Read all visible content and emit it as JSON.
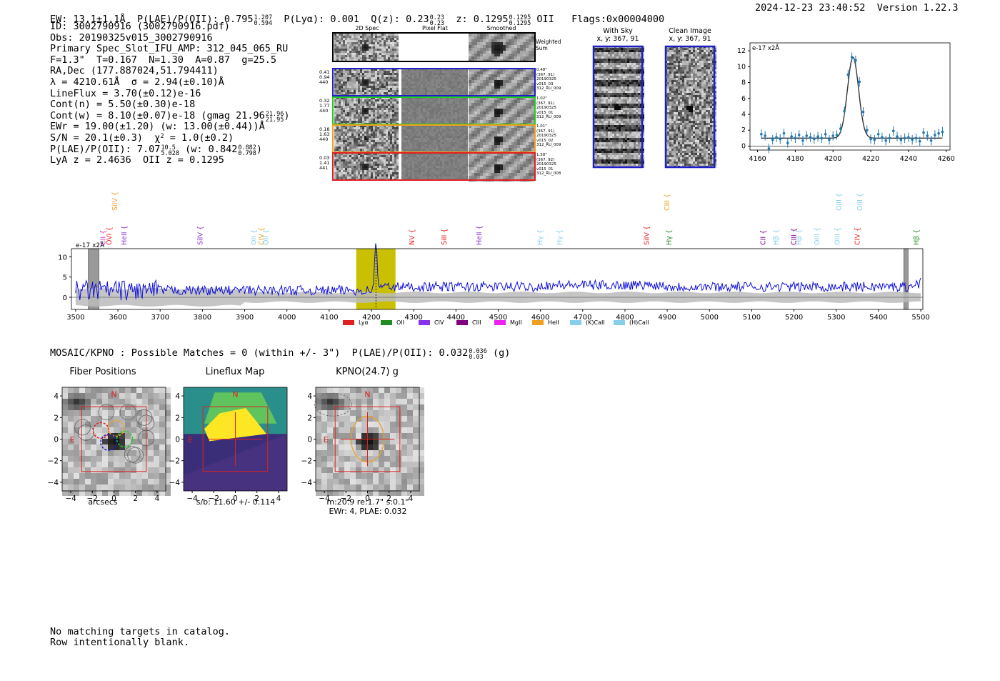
{
  "header": {
    "ew": "EW: 13.1±1.1Å",
    "plae_label": "P(LAE)/P(OII): 0.795",
    "plae_hi": "1.207",
    "plae_lo": "0.594",
    "plya": "P(Lyα): 0.001",
    "qz_label": "Q(z): 0.23",
    "qz_hi": "0.23",
    "qz_lo": "0.23",
    "z_label": "z: 0.1295",
    "z_hi": "0.1295",
    "z_lo": "0.1295",
    "z_line": "OII",
    "flags": "Flags:0x00004000",
    "timestamp": "2024-12-23 23:40:52",
    "version": "Version 1.22.3"
  },
  "info": {
    "id": "ID: 3002790916 (3002790916.pdf)",
    "obs": "Obs: 20190325v015_3002790916",
    "primary": "Primary Spec_Slot_IFU_AMP: 312_045_065_RU",
    "params": "F=1.3\"  T=0.167  N=1.30  A=0.87  g=25.5",
    "radec": "RA,Dec (177.887024,51.794411)",
    "lambda": "λ = 4210.61Å  σ = 2.94(±0.10)Å",
    "lineflux": "LineFlux = 3.70(±0.12)e-16",
    "contn": "Cont(n) = 5.50(±0.30)e-18",
    "contw": "Cont(w) = 8.10(±0.07)e-18 (gmag 21.96",
    "gmag_hi": "21.96",
    "gmag_lo": "21.95",
    "ewr": "EWr = 19.00(±1.20) (w: 13.00(±0.44))Å",
    "sn": "S/N = 20.1(±0.3)  χ",
    "chi2": "= 1.0(±0.2)",
    "plae": "P(LAE)/P(OII): 7.07",
    "plae_hi": "10.5",
    "plae_lo": "5.028",
    "plae_w": "(w: 0.842",
    "plae_w_hi": "0.882",
    "plae_w_lo": "0.798",
    "z": "LyA z = 2.4636  OII z = 0.1295"
  },
  "cutouts": {
    "col_titles": [
      "2D Spec",
      "Pixel Flat",
      "Smoothed"
    ],
    "weighted_sum": "Weighted\nSum",
    "rows": [
      {
        "left": "0.41\n0.94\n440",
        "right": "0.48\"\n(367, 91)\n20190325\nv015_03\n312_RU_009",
        "color": "#1f1fc8"
      },
      {
        "left": "0.32\n1.77\n440",
        "right": "1.02\"\n(367, 91)\n20190325\nv015_01\n312_RU_009",
        "color": "#22cc22"
      },
      {
        "left": "0.18\n1.63\n440",
        "right": "1.01\"\n(367, 91)\n20190325\nv015_02\n312_RU_009",
        "color": "#f0a020"
      },
      {
        "left": "0.03\n1.41\n441",
        "right": "1.58\"\n(367, 92)\n20190325\nv015_01\n312_RU_008",
        "color": "#e02020"
      }
    ],
    "with_sky_title": "With Sky\nx, y: 367, 91",
    "clean_title": "Clean Image\nx, y: 367, 91"
  },
  "chart_data": [
    {
      "type": "line",
      "title": "",
      "ylabel": "e-17 x2Å",
      "x_ticks": [
        4160,
        4180,
        4200,
        4220,
        4240,
        4260
      ],
      "y_ticks": [
        0,
        2,
        4,
        6,
        8,
        10,
        12
      ],
      "xlim": [
        4156,
        4262
      ],
      "ylim": [
        -0.5,
        13
      ],
      "series": [
        {
          "name": "data",
          "x": [
            4162,
            4164,
            4166,
            4168,
            4170,
            4172,
            4174,
            4176,
            4178,
            4180,
            4182,
            4184,
            4186,
            4188,
            4190,
            4192,
            4194,
            4196,
            4198,
            4200,
            4202,
            4204,
            4206,
            4208,
            4210,
            4212,
            4214,
            4216,
            4218,
            4220,
            4222,
            4224,
            4226,
            4228,
            4230,
            4232,
            4234,
            4236,
            4238,
            4240,
            4242,
            4244,
            4246,
            4248,
            4250,
            4252,
            4254,
            4256,
            4258
          ],
          "y": [
            1.5,
            1.3,
            -0.3,
            0.8,
            1.1,
            0.9,
            1.6,
            0.4,
            1.2,
            1.0,
            1.4,
            0.7,
            1.3,
            1.1,
            0.9,
            1.2,
            1.0,
            1.5,
            0.8,
            1.3,
            1.4,
            2.2,
            4.4,
            9.0,
            11.2,
            10.8,
            8.1,
            4.3,
            2.0,
            0.9,
            0.8,
            1.5,
            1.1,
            0.7,
            1.0,
            1.9,
            1.2,
            0.8,
            1.0,
            1.1,
            0.8,
            1.0,
            0.6,
            1.7,
            1.3,
            0.7,
            1.4,
            1.6,
            1.8
          ]
        },
        {
          "name": "fit",
          "model": "gaussian",
          "center": 4210.61,
          "sigma": 2.94,
          "amplitude": 10.2,
          "continuum": 1.0
        }
      ]
    },
    {
      "type": "line",
      "ylabel": "e-17 x2Å",
      "x_ticks": [
        3500,
        3600,
        3700,
        3800,
        3900,
        4000,
        4100,
        4200,
        4300,
        4400,
        4500,
        4600,
        4700,
        4800,
        4900,
        5000,
        5100,
        5200,
        5300,
        5400,
        5500
      ],
      "y_ticks": [
        0,
        5,
        10
      ],
      "xlim": [
        3490,
        5505
      ],
      "ylim": [
        -3,
        12
      ],
      "highlight": [
        4164,
        4257
      ],
      "masked": [
        [
          3530,
          3555
        ],
        [
          5460,
          5470
        ]
      ],
      "peak": {
        "center": 4210.6,
        "sigma": 2.94,
        "amplitude": 10.2
      },
      "lines": [
        {
          "name": "CII",
          "wave": 3565,
          "color": "#cc33cc",
          "tier": 0
        },
        {
          "name": "SiIV",
          "wave": 3593,
          "color": "#f0a020",
          "tier": 1
        },
        {
          "name": "OVI",
          "wave": 3580,
          "color": "#e02020",
          "tier": 0
        },
        {
          "name": "HeII",
          "wave": 3615,
          "color": "#8833cc",
          "tier": 0
        },
        {
          "name": "SiIV",
          "wave": 3795,
          "color": "#8833cc",
          "tier": 0
        },
        {
          "name": "OII",
          "wave": 3922,
          "color": "#87ceeb",
          "tier": 0
        },
        {
          "name": "CIV",
          "wave": 3940,
          "color": "#f0a020",
          "tier": 0
        },
        {
          "name": "OII",
          "wave": 3951,
          "color": "#87ceeb",
          "tier": 0
        },
        {
          "name": "NV",
          "wave": 4296,
          "color": "#e02020",
          "tier": 0
        },
        {
          "name": "SiII",
          "wave": 4372,
          "color": "#e02020",
          "tier": 0
        },
        {
          "name": "HeII",
          "wave": 4455,
          "color": "#8833cc",
          "tier": 0
        },
        {
          "name": "Hγ",
          "wave": 4600,
          "color": "#87ceeb",
          "tier": 0
        },
        {
          "name": "Hγ",
          "wave": 4645,
          "color": "#87ceeb",
          "tier": 0
        },
        {
          "name": "SiIV",
          "wave": 4852,
          "color": "#e02020",
          "tier": 0
        },
        {
          "name": "CIII",
          "wave": 4900,
          "color": "#f0a020",
          "tier": 1
        },
        {
          "name": "Hγ",
          "wave": 4904,
          "color": "#228b22",
          "tier": 0
        },
        {
          "name": "CII",
          "wave": 5127,
          "color": "#800080",
          "tier": 0
        },
        {
          "name": "Hβ",
          "wave": 5158,
          "color": "#87ceeb",
          "tier": 0
        },
        {
          "name": "CIII",
          "wave": 5200,
          "color": "#800080",
          "tier": 0
        },
        {
          "name": "Hβ",
          "wave": 5212,
          "color": "#87ceeb",
          "tier": 0
        },
        {
          "name": "OIII",
          "wave": 5255,
          "color": "#87ceeb",
          "tier": 0
        },
        {
          "name": "OIII",
          "wave": 5306,
          "color": "#87ceeb",
          "tier": 1
        },
        {
          "name": "OIII",
          "wave": 5303,
          "color": "#87ceeb",
          "tier": 0
        },
        {
          "name": "OIII",
          "wave": 5356,
          "color": "#87ceeb",
          "tier": 1
        },
        {
          "name": "CIV",
          "wave": 5350,
          "color": "#e02020",
          "tier": 0
        },
        {
          "name": "Hβ",
          "wave": 5490,
          "color": "#228b22",
          "tier": 0
        }
      ],
      "legend": [
        {
          "name": "Lyα",
          "color": "#e02020"
        },
        {
          "name": "OII",
          "color": "#228b22"
        },
        {
          "name": "CIV",
          "color": "#8833ee"
        },
        {
          "name": "CIII",
          "color": "#800080"
        },
        {
          "name": "MgII",
          "color": "#ee22ee"
        },
        {
          "name": "HeII",
          "color": "#f0a020"
        },
        {
          "name": "(K)CaII",
          "color": "#87ceeb"
        },
        {
          "name": "(H)CaII",
          "color": "#87ceeb"
        }
      ]
    }
  ],
  "catalog": {
    "line": "MOSAIC/KPNO : Possible Matches = 0 (within +/- 3\")  P(LAE)/P(OII): 0.032",
    "hi": "0.036",
    "lo": "0.03",
    "band": "(g)"
  },
  "panels": {
    "fiber_title": "Fiber Positions",
    "lineflux_title": "Lineflux Map",
    "kpno_title": "KPNO(24.7) g",
    "xlabel": "arcsecs",
    "sb": "s/b: 11.60 +/- 0.114",
    "kpno_caption1": "m:20.9  re:1.7\"  s:0.1\"",
    "kpno_caption2": "EWr: 4, PLAE: 0.032",
    "ticks": [
      "-4",
      "-2",
      "0",
      "2",
      "4"
    ],
    "n_label": "N",
    "e_label": "E"
  },
  "footer": {
    "line1": "No matching targets in catalog.",
    "line2": "Row intentionally blank."
  }
}
